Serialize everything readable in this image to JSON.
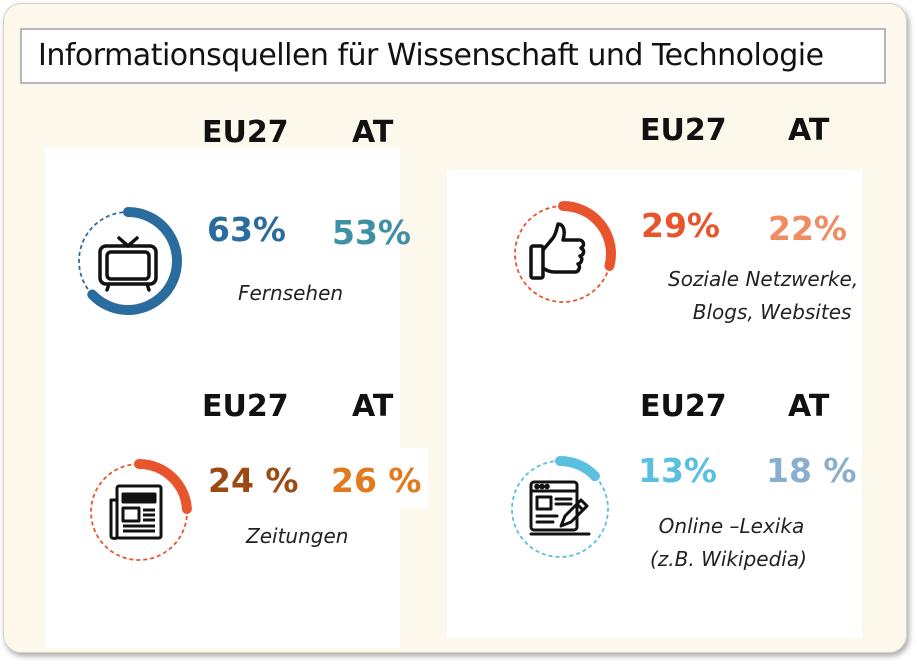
{
  "title": "Informationsquellen für Wissenschaft und Technologie",
  "chart_data": {
    "type": "infographic",
    "title": "Informationsquellen für Wissenschaft und Technologie",
    "column_labels": [
      "EU27",
      "AT"
    ],
    "categories": [
      {
        "caption": [
          "Fernsehen"
        ],
        "icon": "tv-icon",
        "color": "#2b6c9e",
        "eu27": 63,
        "at": 53,
        "eu27_label": "63%",
        "at_label": "53%",
        "eu27_color": "#2b6c9e",
        "at_color": "#3f8fa5"
      },
      {
        "caption": [
          "Soziale Netzwerke,",
          "Blogs, Websites"
        ],
        "icon": "thumbs-up-icon",
        "color": "#e8552d",
        "eu27": 29,
        "at": 22,
        "eu27_label": "29%",
        "at_label": "22%",
        "eu27_color": "#e8552d",
        "at_color": "#f08c62"
      },
      {
        "caption": [
          "Zeitungen"
        ],
        "icon": "newspaper-icon",
        "color": "#e8552d",
        "eu27": 24,
        "at": 26,
        "eu27_label": "24 %",
        "at_label": "26 %",
        "eu27_color": "#9a4a12",
        "at_color": "#e07a1d"
      },
      {
        "caption": [
          "Online –Lexika",
          "(z.B. Wikipedia)"
        ],
        "icon": "webpage-edit-icon",
        "color": "#5bbfe0",
        "eu27": 13,
        "at": 18,
        "eu27_label": "13%",
        "at_label": "18 %",
        "eu27_color": "#5bbfe0",
        "at_color": "#8aaed0"
      }
    ]
  }
}
